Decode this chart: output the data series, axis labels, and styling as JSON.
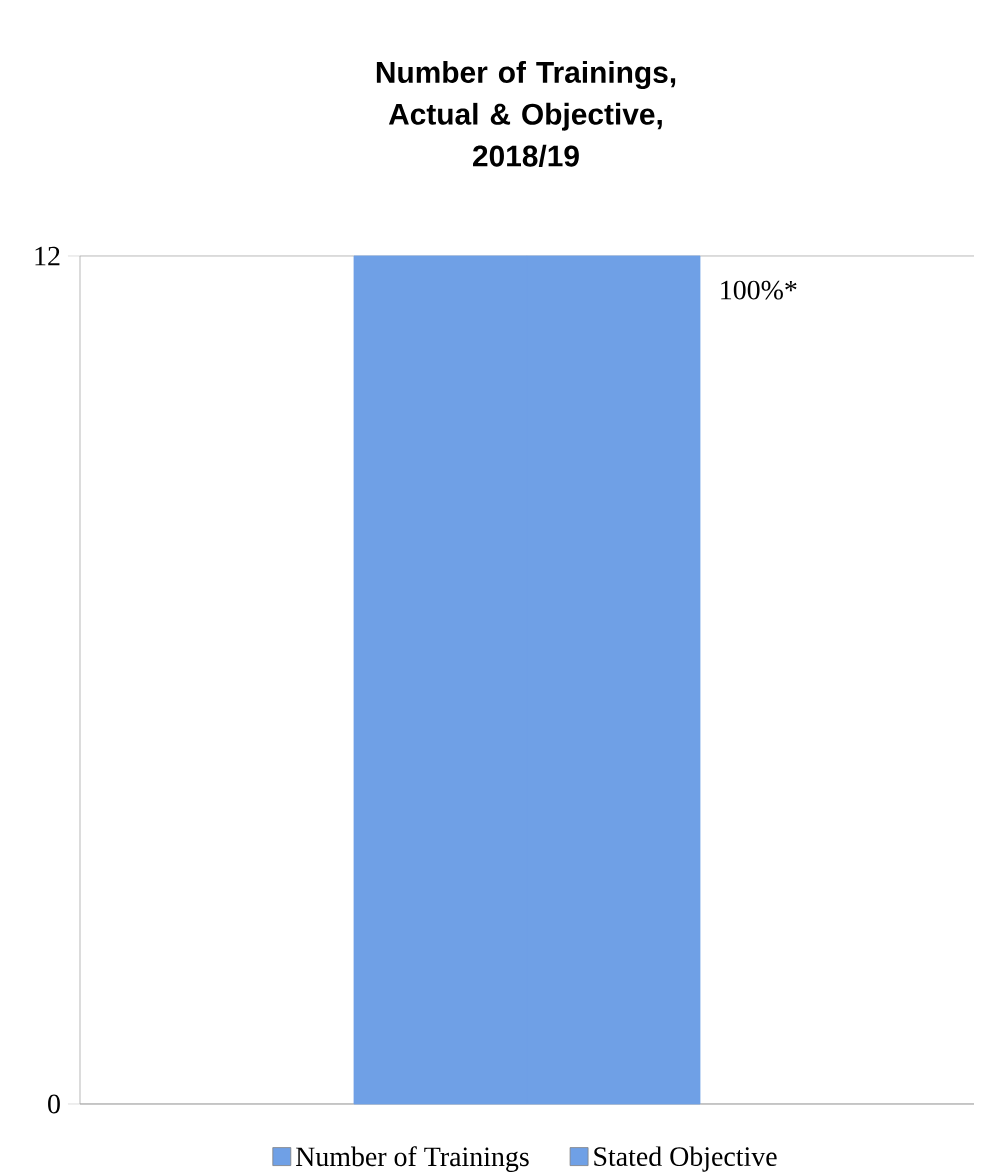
{
  "chart_data": {
    "type": "bar",
    "title": "Number of Trainings,\nActual & Objective,\n2018/19",
    "categories": [
      null
    ],
    "series": [
      {
        "name": "Number of Trainings",
        "color": "#6fa0e6",
        "values": [
          12
        ]
      },
      {
        "name": "Stated Objective",
        "color": "#6fa0e6",
        "values": [
          12
        ]
      }
    ],
    "ylim": [
      0,
      12
    ],
    "yticks": [
      0,
      12
    ],
    "grid": "y",
    "legend": "bottom",
    "annotations": [
      "100%*"
    ]
  }
}
